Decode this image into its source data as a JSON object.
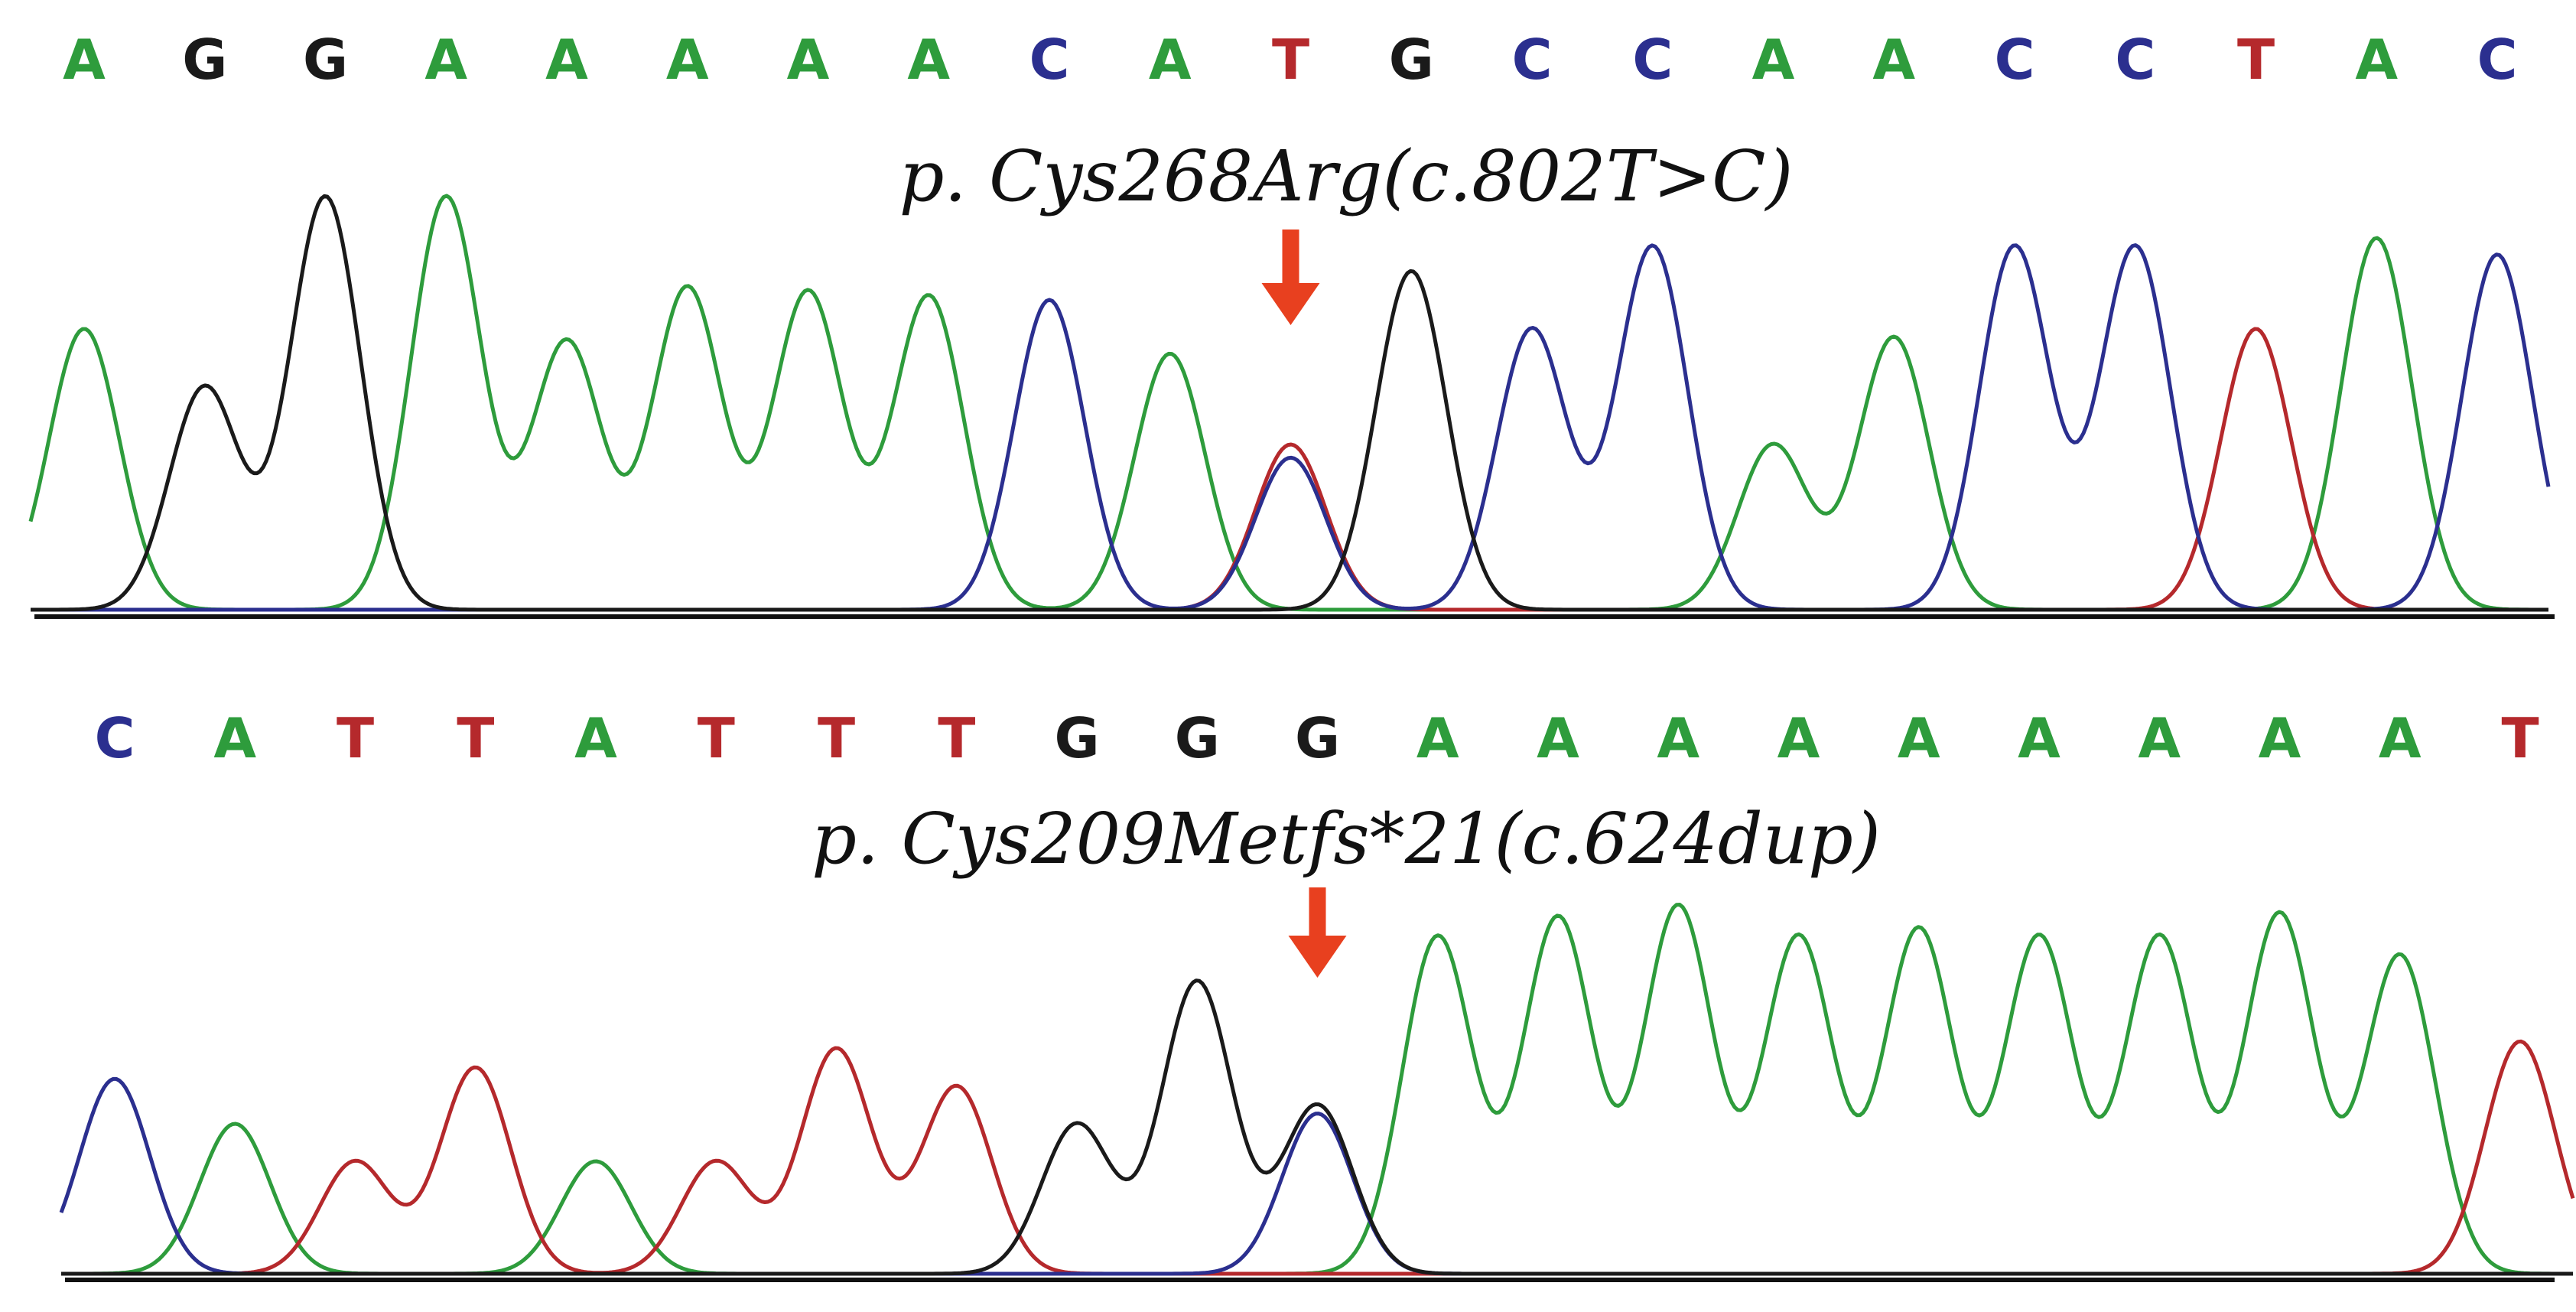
{
  "colors": {
    "A": "#2e9c3c",
    "C": "#2b2f8f",
    "G": "#1a1a1a",
    "T": "#b5292c",
    "arrow": "#e8401f"
  },
  "panels": [
    {
      "bases": [
        "A",
        "G",
        "G",
        "A",
        "A",
        "A",
        "A",
        "A",
        "C",
        "A",
        "T",
        "G",
        "C",
        "C",
        "A",
        "A",
        "C",
        "C",
        "T",
        "A",
        "C"
      ],
      "variant_label": "p. Cys268Arg(c.802T>C)",
      "variant_base_index": 10,
      "secondary_base": "C",
      "secondary_level": 0.92,
      "peak_levels": [
        0.68,
        0.54,
        1.0,
        1.0,
        0.65,
        0.78,
        0.77,
        0.76,
        0.75,
        0.62,
        0.4,
        0.82,
        0.68,
        0.88,
        0.4,
        0.66,
        0.88,
        0.88,
        0.68,
        0.9,
        0.86
      ]
    },
    {
      "bases": [
        "C",
        "A",
        "T",
        "T",
        "A",
        "T",
        "T",
        "T",
        "G",
        "G",
        "G",
        "A",
        "A",
        "A",
        "A",
        "A",
        "A",
        "A",
        "A",
        "A",
        "T"
      ],
      "variant_label": "p. Cys209Metfs*21(c.624dup)",
      "variant_base_index": 10,
      "secondary_base": "C",
      "secondary_level": 0.95,
      "peak_levels": [
        0.52,
        0.4,
        0.3,
        0.55,
        0.3,
        0.3,
        0.6,
        0.5,
        0.4,
        0.78,
        0.45,
        0.9,
        0.95,
        0.98,
        0.9,
        0.92,
        0.9,
        0.9,
        0.96,
        0.85,
        0.62
      ]
    }
  ]
}
